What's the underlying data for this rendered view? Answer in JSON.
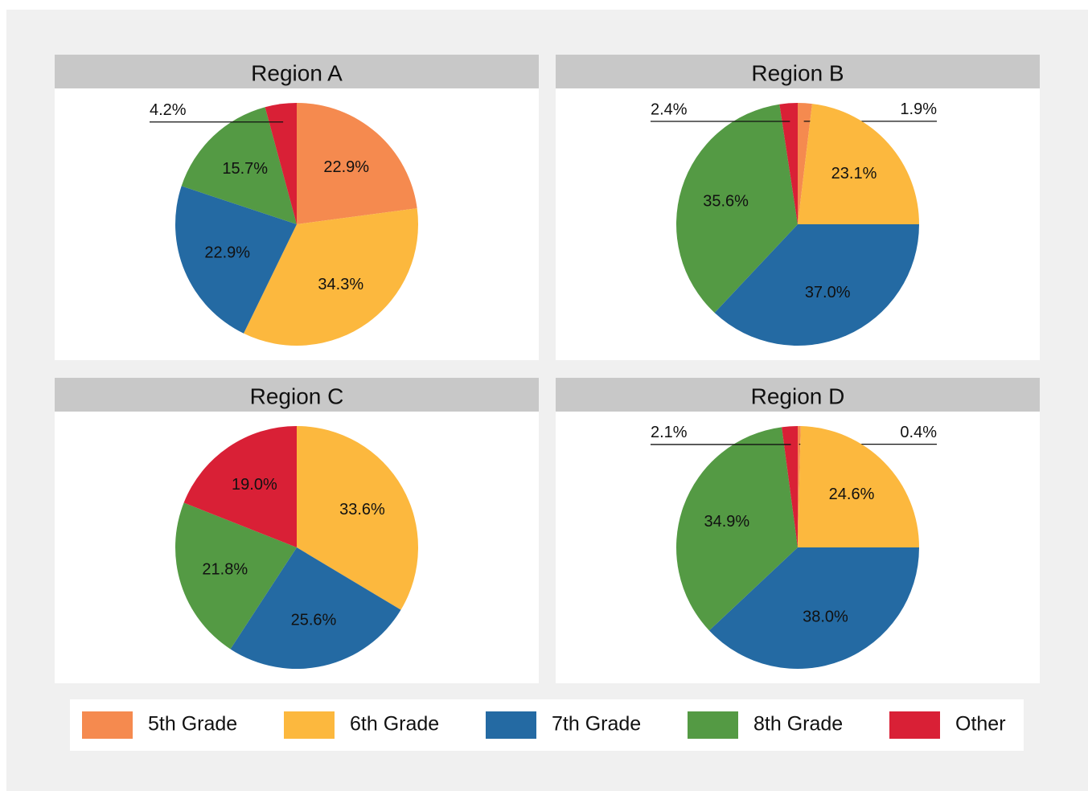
{
  "chart_data": [
    {
      "type": "pie",
      "title": "Region A",
      "categories": [
        "5th Grade",
        "6th Grade",
        "7th Grade",
        "8th Grade",
        "Other"
      ],
      "values": [
        22.9,
        34.3,
        22.9,
        15.7,
        4.2
      ],
      "value_labels": [
        "22.9%",
        "34.3%",
        "22.9%",
        "15.7%",
        "4.2%"
      ],
      "colors": [
        "#f58a4f",
        "#fcb83e",
        "#246aa3",
        "#549a44",
        "#d92036"
      ],
      "legend": "bottom"
    },
    {
      "type": "pie",
      "title": "Region B",
      "categories": [
        "5th Grade",
        "6th Grade",
        "7th Grade",
        "8th Grade",
        "Other"
      ],
      "values": [
        1.9,
        23.1,
        37.0,
        35.6,
        2.4
      ],
      "value_labels": [
        "1.9%",
        "23.1%",
        "37.0%",
        "35.6%",
        "2.4%"
      ],
      "colors": [
        "#f58a4f",
        "#fcb83e",
        "#246aa3",
        "#549a44",
        "#d92036"
      ]
    },
    {
      "type": "pie",
      "title": "Region C",
      "categories": [
        "6th Grade",
        "7th Grade",
        "8th Grade",
        "Other"
      ],
      "values": [
        33.6,
        25.6,
        21.8,
        19.0
      ],
      "value_labels": [
        "33.6%",
        "25.6%",
        "21.8%",
        "19.0%"
      ],
      "colors": [
        "#fcb83e",
        "#246aa3",
        "#549a44",
        "#d92036"
      ]
    },
    {
      "type": "pie",
      "title": "Region D",
      "categories": [
        "5th Grade",
        "6th Grade",
        "7th Grade",
        "8th Grade",
        "Other"
      ],
      "values": [
        0.4,
        24.6,
        38.0,
        34.9,
        2.1
      ],
      "value_labels": [
        "0.4%",
        "24.6%",
        "38.0%",
        "34.9%",
        "2.1%"
      ],
      "colors": [
        "#f58a4f",
        "#fcb83e",
        "#246aa3",
        "#549a44",
        "#d92036"
      ]
    }
  ]
}
